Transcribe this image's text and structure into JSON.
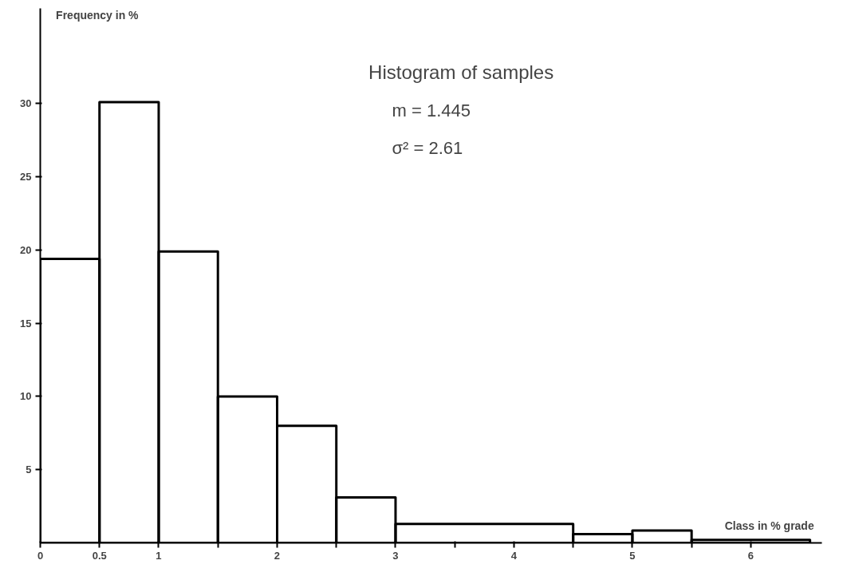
{
  "chart_data": {
    "type": "histogram",
    "xlabel": "Class in % grade",
    "ylabel": "Frequency in %",
    "bins": [
      0,
      0.5,
      1,
      1.5,
      2,
      2.5,
      3,
      4.5,
      5,
      5.5,
      6.5
    ],
    "values": [
      19.4,
      30.1,
      19.9,
      10,
      8,
      3.1,
      1.3,
      0.6,
      0.85,
      0.2
    ],
    "color": "#000000",
    "xlim": [
      0,
      6.6
    ],
    "ylim": [
      0,
      36.5
    ],
    "xticks": [
      0,
      0.5,
      1,
      {
        "value": 1.5,
        "label": null
      },
      2,
      {
        "value": 2.5,
        "label": null
      },
      3,
      {
        "value": 3.5,
        "label": null
      },
      4,
      {
        "value": 4.5,
        "label": null
      },
      5,
      {
        "value": 5.5,
        "label": null
      },
      6
    ],
    "yticks": [
      5,
      10,
      15,
      20,
      25,
      30
    ],
    "grid": false,
    "annotations": [
      "Histogram of samples",
      "m = 1.445",
      "σ² = 2.61"
    ]
  }
}
